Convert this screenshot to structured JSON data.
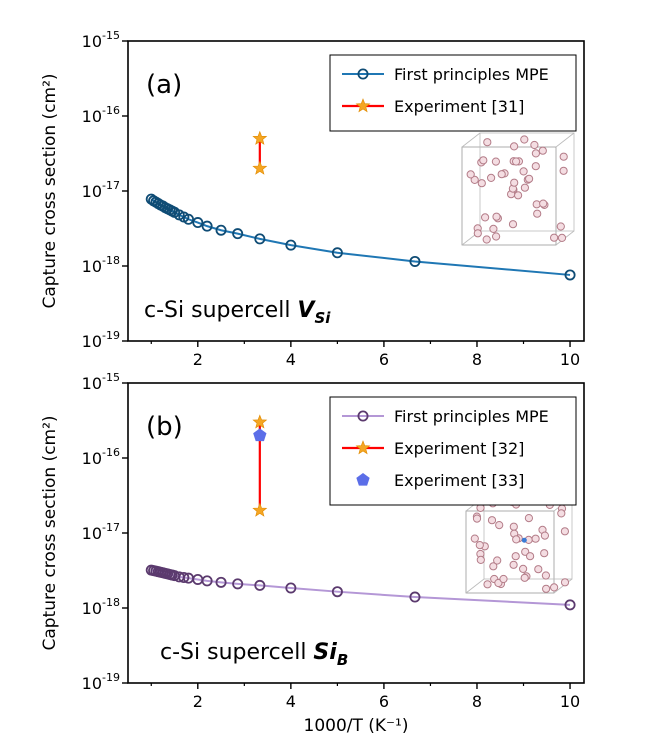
{
  "chart_data": [
    {
      "type": "line",
      "panel_label": "(a)",
      "annotation": {
        "prefix": "c-Si supercell ",
        "symbol": "V",
        "subscript": "Si"
      },
      "xlabel": "",
      "ylabel": "Capture cross section (cm²)",
      "xlim": [
        0.5,
        10.3
      ],
      "ylim": [
        1e-19,
        1e-15
      ],
      "yscale": "log",
      "x_ticks": [
        2,
        4,
        6,
        8,
        10
      ],
      "y_ticks": [
        {
          "value": 1e-15,
          "base": "10",
          "exp": "-15"
        },
        {
          "value": 1e-16,
          "base": "10",
          "exp": "-16"
        },
        {
          "value": 1e-17,
          "base": "10",
          "exp": "-17"
        },
        {
          "value": 1e-18,
          "base": "10",
          "exp": "-18"
        },
        {
          "value": 1e-19,
          "base": "10",
          "exp": "-19"
        }
      ],
      "legend_position": "top-right",
      "series": [
        {
          "name": "First principles MPE",
          "kind": "line-circles",
          "color": "#1f77b4",
          "marker_color": "#0f4c75",
          "x": [
            1.0,
            1.05,
            1.1,
            1.15,
            1.2,
            1.25,
            1.3,
            1.35,
            1.4,
            1.45,
            1.5,
            1.6,
            1.7,
            1.8,
            2.0,
            2.2,
            2.5,
            2.857,
            3.333,
            4.0,
            5.0,
            6.667,
            10.0
          ],
          "y": [
            7.8e-18,
            7.4e-18,
            7.1e-18,
            6.8e-18,
            6.5e-18,
            6.3e-18,
            6e-18,
            5.8e-18,
            5.6e-18,
            5.4e-18,
            5.2e-18,
            4.8e-18,
            4.5e-18,
            4.2e-18,
            3.8e-18,
            3.4e-18,
            3e-18,
            2.7e-18,
            2.3e-18,
            1.9e-18,
            1.5e-18,
            1.15e-18,
            7.6e-19
          ]
        },
        {
          "name": "Experiment [31]",
          "kind": "range-stars",
          "color": "#ff0000",
          "marker_color": "#f5a623",
          "x": 3.333,
          "y_range": [
            2e-17,
            5e-17
          ]
        }
      ]
    },
    {
      "type": "line",
      "panel_label": "(b)",
      "annotation": {
        "prefix": "c-Si supercell ",
        "symbol": "Si",
        "subscript": "B"
      },
      "xlabel": "1000/T (K⁻¹)",
      "ylabel": "Capture cross section (cm²)",
      "xlim": [
        0.5,
        10.3
      ],
      "ylim": [
        1e-19,
        1e-15
      ],
      "yscale": "log",
      "x_ticks": [
        2,
        4,
        6,
        8,
        10
      ],
      "y_ticks": [
        {
          "value": 1e-15,
          "base": "10",
          "exp": "-15"
        },
        {
          "value": 1e-16,
          "base": "10",
          "exp": "-16"
        },
        {
          "value": 1e-17,
          "base": "10",
          "exp": "-17"
        },
        {
          "value": 1e-18,
          "base": "10",
          "exp": "-18"
        },
        {
          "value": 1e-19,
          "base": "10",
          "exp": "-19"
        }
      ],
      "legend_position": "top-right",
      "series": [
        {
          "name": "First principles MPE",
          "kind": "line-circles",
          "color": "#b497d6",
          "marker_color": "#5b3a6e",
          "x": [
            1.0,
            1.05,
            1.1,
            1.15,
            1.2,
            1.25,
            1.3,
            1.35,
            1.4,
            1.45,
            1.5,
            1.6,
            1.7,
            1.8,
            2.0,
            2.2,
            2.5,
            2.857,
            3.333,
            4.0,
            5.0,
            6.667,
            10.0
          ],
          "y": [
            3.2e-18,
            3.15e-18,
            3.1e-18,
            3.05e-18,
            3e-18,
            2.95e-18,
            2.9e-18,
            2.85e-18,
            2.8e-18,
            2.75e-18,
            2.7e-18,
            2.6e-18,
            2.55e-18,
            2.5e-18,
            2.4e-18,
            2.3e-18,
            2.2e-18,
            2.1e-18,
            2e-18,
            1.85e-18,
            1.65e-18,
            1.4e-18,
            1.1e-18
          ]
        },
        {
          "name": "Experiment [32]",
          "kind": "range-stars",
          "color": "#ff0000",
          "marker_color": "#f5a623",
          "x": 3.333,
          "y_range": [
            2e-17,
            3e-16
          ]
        },
        {
          "name": "Experiment [33]",
          "kind": "pentagon",
          "color": "#5b6ee8",
          "x": 3.333,
          "y": 2e-16
        }
      ]
    }
  ]
}
